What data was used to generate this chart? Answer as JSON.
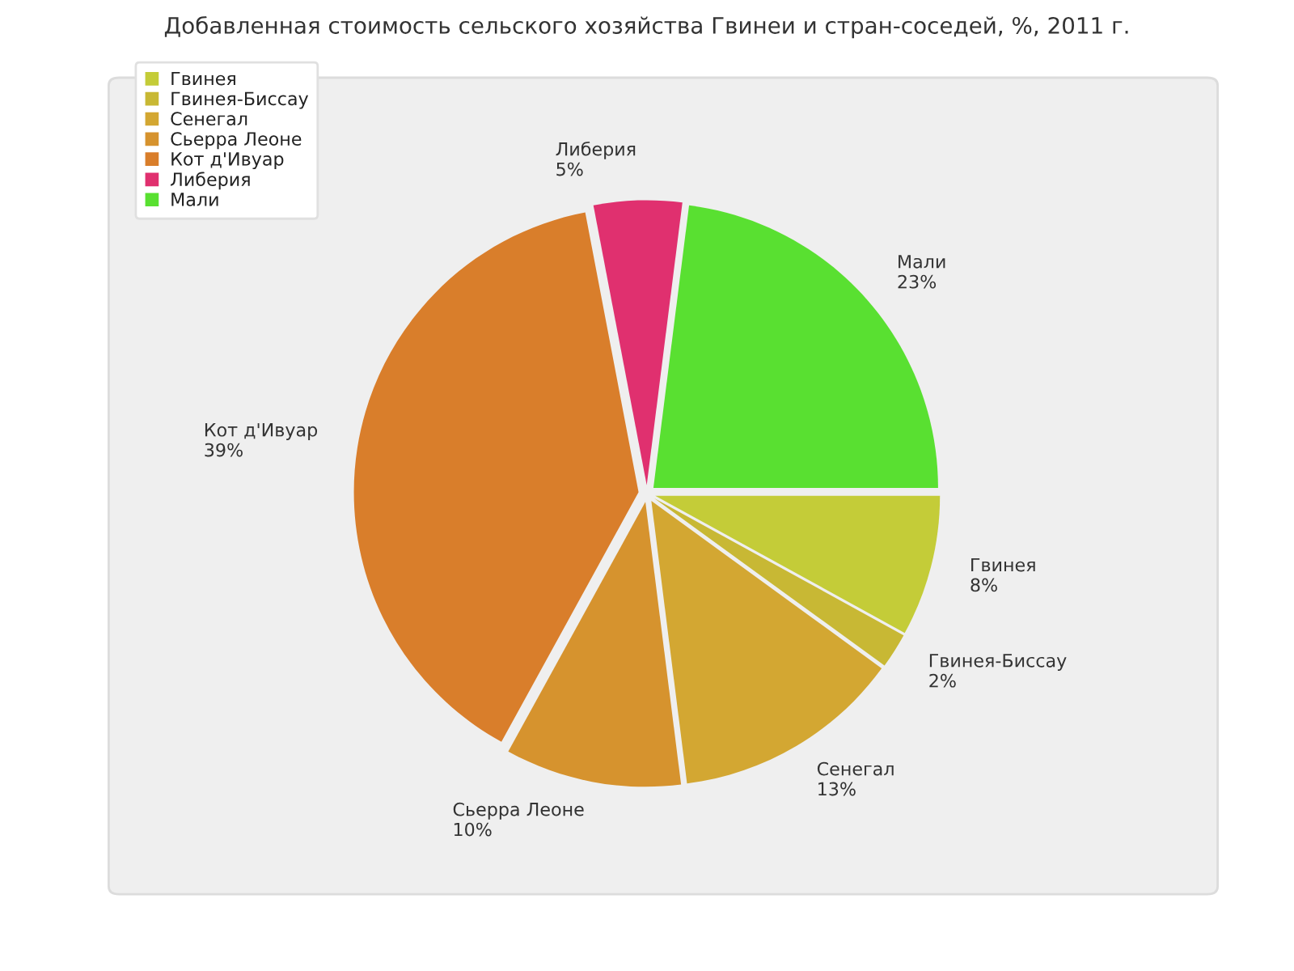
{
  "chart_data": {
    "type": "pie",
    "title": "Добавленная стоимость сельского хозяйства Гвинеи и стран-соседей, %, 2011 г.",
    "categories": [
      "Гвинея",
      "Гвинея-Биссау",
      "Сенегал",
      "Сьерра Леоне",
      "Кот д'Ивуар",
      "Либерия",
      "Мали"
    ],
    "values": [
      8,
      2,
      13,
      10,
      39,
      5,
      23
    ],
    "value_labels": [
      "8%",
      "2%",
      "13%",
      "10%",
      "39%",
      "5%",
      "23%"
    ],
    "colors": [
      "#c4cc38",
      "#c8b834",
      "#d3a732",
      "#d6932e",
      "#d97e2b",
      "#e0306f",
      "#59e031"
    ],
    "legend": "top left"
  }
}
